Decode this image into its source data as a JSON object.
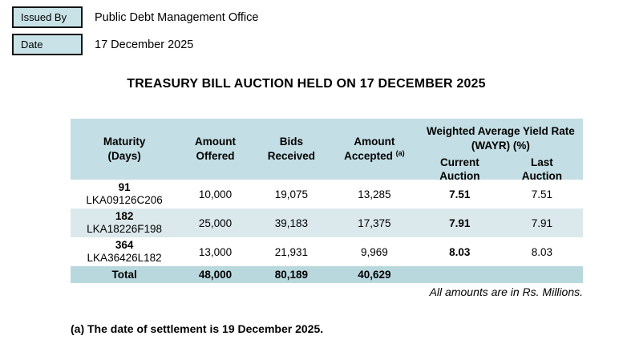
{
  "meta": {
    "issued_by_label": "Issued By",
    "issued_by_value": "Public Debt Management Office",
    "date_label": "Date",
    "date_value": "17 December 2025"
  },
  "title": "TREASURY BILL AUCTION HELD ON 17 DECEMBER 2025",
  "table": {
    "col_maturity_line1": "Maturity",
    "col_maturity_line2": "(Days)",
    "col_offered_line1": "Amount",
    "col_offered_line2": "Offered",
    "col_bids_line1": "Bids",
    "col_bids_line2": "Received",
    "col_accepted_line1": "Amount",
    "col_accepted_line2": "Accepted",
    "col_accepted_note": "(a)",
    "group_wayr_line1": "Weighted Average Yield Rate",
    "group_wayr_line2": "(WAYR) (%)",
    "col_current_line1": "Current",
    "col_current_line2": "Auction",
    "col_last_line1": "Last",
    "col_last_line2": "Auction",
    "rows": [
      {
        "maturity_days": "91",
        "isin": "LKA09126C206",
        "amount_offered": "10,000",
        "bids_received": "19,075",
        "amount_accepted": "13,285",
        "wayr_current": "7.51",
        "wayr_last": "7.51"
      },
      {
        "maturity_days": "182",
        "isin": "LKA18226F198",
        "amount_offered": "25,000",
        "bids_received": "39,183",
        "amount_accepted": "17,375",
        "wayr_current": "7.91",
        "wayr_last": "7.91"
      },
      {
        "maturity_days": "364",
        "isin": "LKA36426L182",
        "amount_offered": "13,000",
        "bids_received": "21,931",
        "amount_accepted": "9,969",
        "wayr_current": "8.03",
        "wayr_last": "8.03"
      }
    ],
    "total": {
      "label": "Total",
      "amount_offered": "48,000",
      "bids_received": "80,189",
      "amount_accepted": "40,629"
    },
    "units_note": "All amounts are in Rs. Millions."
  },
  "footnote": "(a) The date of settlement is 19 December 2025.",
  "colors": {
    "header_bg": "#c3dee4",
    "alt_row_bg": "#dbe9ec",
    "total_bg": "#b9d8de",
    "label_box_bg": "#c9e2e7",
    "rule_color": "#000000"
  }
}
